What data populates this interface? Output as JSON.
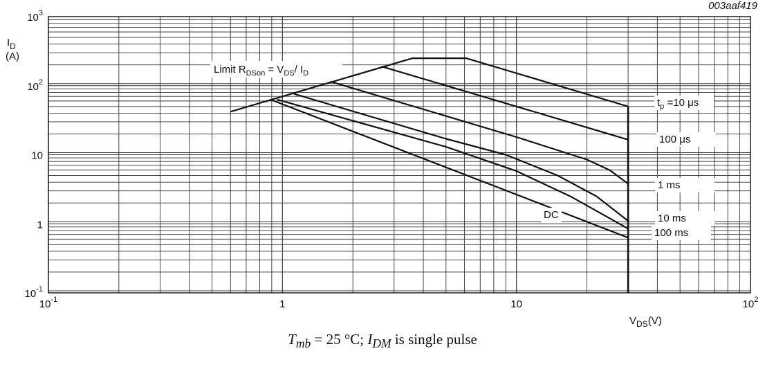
{
  "chart_data": {
    "type": "line",
    "figure_id": "003aaf419",
    "x_scale": "log",
    "y_scale": "log",
    "xlim": [
      0.1,
      100
    ],
    "ylim": [
      0.1,
      1000
    ],
    "grid": true,
    "xlabel": {
      "base": "V",
      "sub": "DS",
      "unit": "(V)"
    },
    "ylabel": {
      "base": "I",
      "sub": "D",
      "unit": "(A)"
    },
    "x_ticks": [
      {
        "value": 0.1,
        "base": "10",
        "exp": "-1"
      },
      {
        "value": 1,
        "base": "1",
        "exp": ""
      },
      {
        "value": 10,
        "base": "10",
        "exp": ""
      },
      {
        "value": 100,
        "base": "10",
        "exp": "2"
      }
    ],
    "y_ticks": [
      {
        "value": 0.1,
        "base": "10",
        "exp": "-1"
      },
      {
        "value": 1,
        "base": "1",
        "exp": ""
      },
      {
        "value": 10,
        "base": "10",
        "exp": ""
      },
      {
        "value": 100,
        "base": "10",
        "exp": "2"
      },
      {
        "value": 1000,
        "base": "10",
        "exp": "3"
      }
    ],
    "limit_label": {
      "prefix": "Limit R",
      "sub1": "DSon",
      "mid": " = V",
      "sub2": "DS",
      "mid2": "/ I",
      "sub3": "D"
    },
    "vmax_line": {
      "x": 30,
      "y_from": 0.1,
      "y_to": 50
    },
    "limit_line": {
      "points": [
        [
          0.6,
          42
        ],
        [
          3.6,
          250
        ]
      ]
    },
    "current_limit": {
      "points": [
        [
          3.6,
          250
        ],
        [
          6.1,
          250
        ]
      ]
    },
    "series": [
      {
        "name": "t_p = 10 μs",
        "label": {
          "pre": "t",
          "sub": "p",
          "post": " =10 μs"
        },
        "points": [
          [
            6.1,
            250
          ],
          [
            30,
            50
          ]
        ]
      },
      {
        "name": "100 μs",
        "label": {
          "pre": "100 μs",
          "sub": "",
          "post": ""
        },
        "points": [
          [
            2.65,
            190
          ],
          [
            30,
            16.5
          ]
        ]
      },
      {
        "name": "1 ms",
        "label": {
          "pre": "1 ms",
          "sub": "",
          "post": ""
        },
        "points": [
          [
            1.6,
            115
          ],
          [
            10,
            18
          ],
          [
            20,
            8.5
          ],
          [
            25,
            6
          ],
          [
            30,
            3.8
          ]
        ]
      },
      {
        "name": "10 ms",
        "label": {
          "pre": "10 ms",
          "sub": "",
          "post": ""
        },
        "points": [
          [
            1.12,
            76
          ],
          [
            5,
            17
          ],
          [
            9,
            10
          ],
          [
            15,
            5
          ],
          [
            22,
            2.5
          ],
          [
            30,
            1.1
          ]
        ]
      },
      {
        "name": "100 ms",
        "label": {
          "pre": "100 ms",
          "sub": "",
          "post": ""
        },
        "points": [
          [
            0.95,
            63
          ],
          [
            5,
            13
          ],
          [
            10,
            5.8
          ],
          [
            17,
            2.5
          ],
          [
            30,
            0.85
          ]
        ]
      },
      {
        "name": "DC",
        "label": {
          "pre": "DC",
          "sub": "",
          "post": ""
        },
        "points": [
          [
            0.9,
            62
          ],
          [
            30,
            0.63
          ]
        ]
      }
    ],
    "caption": {
      "t": "T",
      "t_sub": "mb",
      "eq": " = 25 °C; ",
      "i": "I",
      "i_sub": "DM",
      "rest": " is single pulse"
    }
  }
}
